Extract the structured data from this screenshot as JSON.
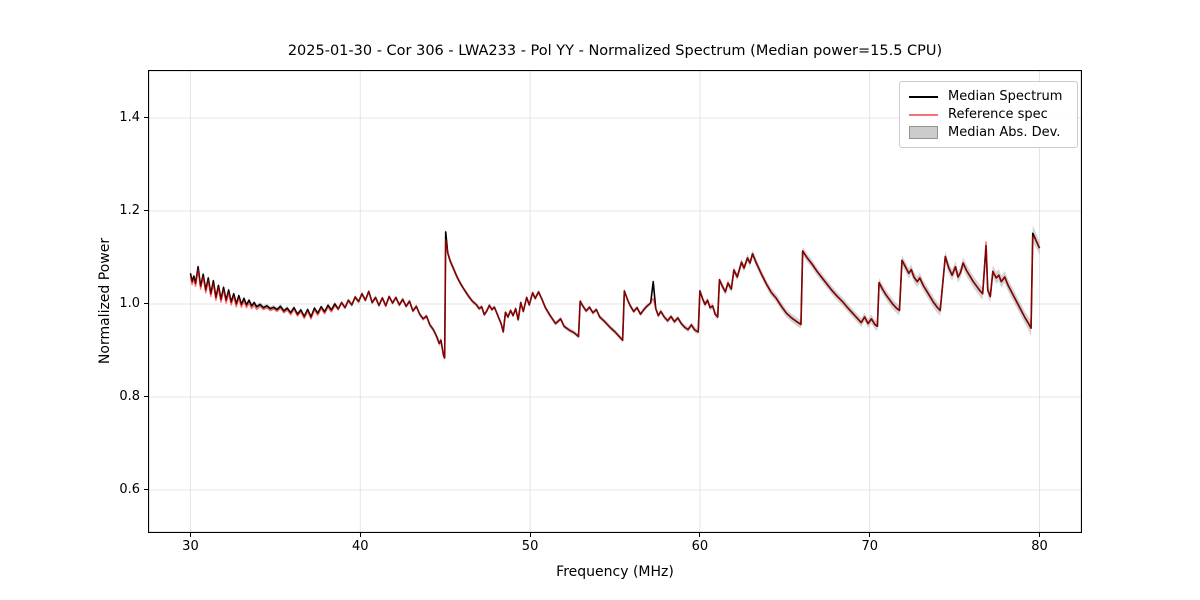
{
  "chart_data": {
    "type": "line",
    "title": "2025-01-30 - Cor 306 - LWA233 - Pol YY - Normalized Spectrum (Median power=15.5 CPU)",
    "xlabel": "Frequency (MHz)",
    "ylabel": "Normalized Power",
    "xlim": [
      27.5,
      82.5
    ],
    "ylim": [
      0.5075,
      1.5032
    ],
    "grid": true,
    "legend_position": "upper right",
    "xticks": [
      {
        "value": 30,
        "label": "30"
      },
      {
        "value": 40,
        "label": "40"
      },
      {
        "value": 50,
        "label": "50"
      },
      {
        "value": 60,
        "label": "60"
      },
      {
        "value": 70,
        "label": "70"
      },
      {
        "value": 80,
        "label": "80"
      }
    ],
    "yticks": [
      {
        "value": 0.6,
        "label": "0.6"
      },
      {
        "value": 0.8,
        "label": "0.8"
      },
      {
        "value": 1.0,
        "label": "1.0"
      },
      {
        "value": 1.2,
        "label": "1.2"
      },
      {
        "value": 1.4,
        "label": "1.4"
      }
    ],
    "legend": {
      "entries": [
        {
          "label": "Median Spectrum",
          "type": "line",
          "swatch_color": "#000000"
        },
        {
          "label": "Reference spec",
          "type": "line",
          "swatch_color": "#f87474"
        },
        {
          "label": "Median Abs. Dev.",
          "type": "patch",
          "swatch_color": "rgba(128,128,128,0.40)",
          "swatch_edge": "rgba(128,128,128,0.75)"
        }
      ]
    },
    "series": [
      {
        "name": "Median Spectrum",
        "color": "#000000",
        "line_width": 1.6,
        "points": [
          [
            30.0,
            1.066
          ],
          [
            30.1,
            1.048
          ],
          [
            30.2,
            1.06
          ],
          [
            30.3,
            1.044
          ],
          [
            30.45,
            1.08
          ],
          [
            30.6,
            1.038
          ],
          [
            30.75,
            1.064
          ],
          [
            30.9,
            1.03
          ],
          [
            31.05,
            1.056
          ],
          [
            31.2,
            1.022
          ],
          [
            31.35,
            1.05
          ],
          [
            31.5,
            1.014
          ],
          [
            31.65,
            1.04
          ],
          [
            31.8,
            1.01
          ],
          [
            31.95,
            1.036
          ],
          [
            32.1,
            1.008
          ],
          [
            32.25,
            1.03
          ],
          [
            32.4,
            1.004
          ],
          [
            32.55,
            1.022
          ],
          [
            32.7,
            1.0
          ],
          [
            32.85,
            1.018
          ],
          [
            33.0,
            0.999
          ],
          [
            33.15,
            1.012
          ],
          [
            33.3,
            0.998
          ],
          [
            33.45,
            1.008
          ],
          [
            33.6,
            0.996
          ],
          [
            33.75,
            1.003
          ],
          [
            33.9,
            0.994
          ],
          [
            34.1,
            0.999
          ],
          [
            34.3,
            0.992
          ],
          [
            34.5,
            0.996
          ],
          [
            34.7,
            0.99
          ],
          [
            34.9,
            0.993
          ],
          [
            35.1,
            0.988
          ],
          [
            35.3,
            0.995
          ],
          [
            35.5,
            0.985
          ],
          [
            35.7,
            0.991
          ],
          [
            35.9,
            0.981
          ],
          [
            36.1,
            0.992
          ],
          [
            36.3,
            0.978
          ],
          [
            36.5,
            0.987
          ],
          [
            36.7,
            0.973
          ],
          [
            36.9,
            0.988
          ],
          [
            37.1,
            0.972
          ],
          [
            37.3,
            0.991
          ],
          [
            37.5,
            0.98
          ],
          [
            37.7,
            0.994
          ],
          [
            37.9,
            0.983
          ],
          [
            38.1,
            0.997
          ],
          [
            38.3,
            0.987
          ],
          [
            38.5,
            1.0
          ],
          [
            38.7,
            0.989
          ],
          [
            38.9,
            1.003
          ],
          [
            39.1,
            0.992
          ],
          [
            39.3,
            1.008
          ],
          [
            39.5,
            0.998
          ],
          [
            39.7,
            1.015
          ],
          [
            39.9,
            1.005
          ],
          [
            40.1,
            1.022
          ],
          [
            40.3,
            1.008
          ],
          [
            40.5,
            1.027
          ],
          [
            40.7,
            1.003
          ],
          [
            40.9,
            1.014
          ],
          [
            41.1,
            0.997
          ],
          [
            41.3,
            1.013
          ],
          [
            41.5,
            0.996
          ],
          [
            41.7,
            1.016
          ],
          [
            41.9,
            1.002
          ],
          [
            42.1,
            1.014
          ],
          [
            42.3,
            0.998
          ],
          [
            42.5,
            1.01
          ],
          [
            42.7,
            0.995
          ],
          [
            42.9,
            1.006
          ],
          [
            43.1,
            0.985
          ],
          [
            43.3,
            0.995
          ],
          [
            43.5,
            0.978
          ],
          [
            43.7,
            0.968
          ],
          [
            43.9,
            0.974
          ],
          [
            44.1,
            0.955
          ],
          [
            44.3,
            0.945
          ],
          [
            44.5,
            0.93
          ],
          [
            44.65,
            0.915
          ],
          [
            44.75,
            0.922
          ],
          [
            44.9,
            0.89
          ],
          [
            44.97,
            0.884
          ],
          [
            45.03,
            1.155
          ],
          [
            45.15,
            1.11
          ],
          [
            45.3,
            1.092
          ],
          [
            45.5,
            1.075
          ],
          [
            45.7,
            1.058
          ],
          [
            45.9,
            1.044
          ],
          [
            46.1,
            1.032
          ],
          [
            46.35,
            1.018
          ],
          [
            46.6,
            1.006
          ],
          [
            46.85,
            0.998
          ],
          [
            47.0,
            0.99
          ],
          [
            47.15,
            0.994
          ],
          [
            47.3,
            0.977
          ],
          [
            47.45,
            0.985
          ],
          [
            47.6,
            0.997
          ],
          [
            47.75,
            0.988
          ],
          [
            47.9,
            0.993
          ],
          [
            48.1,
            0.975
          ],
          [
            48.3,
            0.957
          ],
          [
            48.42,
            0.94
          ],
          [
            48.55,
            0.982
          ],
          [
            48.7,
            0.972
          ],
          [
            48.85,
            0.986
          ],
          [
            49.0,
            0.975
          ],
          [
            49.15,
            0.99
          ],
          [
            49.3,
            0.966
          ],
          [
            49.45,
            1.003
          ],
          [
            49.6,
            0.984
          ],
          [
            49.8,
            1.014
          ],
          [
            49.95,
            0.998
          ],
          [
            50.15,
            1.024
          ],
          [
            50.3,
            1.012
          ],
          [
            50.5,
            1.026
          ],
          [
            50.7,
            1.01
          ],
          [
            50.9,
            0.992
          ],
          [
            51.2,
            0.974
          ],
          [
            51.5,
            0.958
          ],
          [
            51.8,
            0.968
          ],
          [
            52.0,
            0.952
          ],
          [
            52.3,
            0.944
          ],
          [
            52.6,
            0.938
          ],
          [
            52.85,
            0.93
          ],
          [
            52.95,
            1.006
          ],
          [
            53.1,
            0.996
          ],
          [
            53.3,
            0.985
          ],
          [
            53.5,
            0.993
          ],
          [
            53.7,
            0.981
          ],
          [
            53.9,
            0.988
          ],
          [
            54.1,
            0.972
          ],
          [
            54.4,
            0.962
          ],
          [
            54.7,
            0.95
          ],
          [
            55.0,
            0.94
          ],
          [
            55.3,
            0.928
          ],
          [
            55.45,
            0.922
          ],
          [
            55.55,
            1.028
          ],
          [
            55.75,
            1.008
          ],
          [
            55.9,
            0.996
          ],
          [
            56.1,
            0.984
          ],
          [
            56.3,
            0.992
          ],
          [
            56.5,
            0.978
          ],
          [
            56.7,
            0.988
          ],
          [
            56.9,
            0.996
          ],
          [
            57.1,
            1.002
          ],
          [
            57.25,
            1.048
          ],
          [
            57.4,
            0.99
          ],
          [
            57.55,
            0.975
          ],
          [
            57.7,
            0.984
          ],
          [
            57.9,
            0.972
          ],
          [
            58.1,
            0.964
          ],
          [
            58.3,
            0.973
          ],
          [
            58.5,
            0.962
          ],
          [
            58.7,
            0.97
          ],
          [
            58.9,
            0.958
          ],
          [
            59.1,
            0.95
          ],
          [
            59.3,
            0.945
          ],
          [
            59.5,
            0.955
          ],
          [
            59.7,
            0.944
          ],
          [
            59.9,
            0.94
          ],
          [
            60.0,
            1.028
          ],
          [
            60.15,
            1.012
          ],
          [
            60.3,
            0.999
          ],
          [
            60.45,
            1.008
          ],
          [
            60.6,
            0.992
          ],
          [
            60.75,
            0.996
          ],
          [
            60.9,
            0.978
          ],
          [
            61.05,
            0.972
          ],
          [
            61.15,
            1.052
          ],
          [
            61.35,
            1.036
          ],
          [
            61.5,
            1.026
          ],
          [
            61.65,
            1.045
          ],
          [
            61.85,
            1.032
          ],
          [
            62.0,
            1.073
          ],
          [
            62.2,
            1.058
          ],
          [
            62.45,
            1.09
          ],
          [
            62.6,
            1.077
          ],
          [
            62.8,
            1.099
          ],
          [
            62.95,
            1.088
          ],
          [
            63.1,
            1.108
          ],
          [
            63.3,
            1.09
          ],
          [
            63.6,
            1.066
          ],
          [
            63.9,
            1.044
          ],
          [
            64.2,
            1.025
          ],
          [
            64.5,
            1.012
          ],
          [
            64.8,
            0.995
          ],
          [
            65.1,
            0.98
          ],
          [
            65.4,
            0.97
          ],
          [
            65.7,
            0.962
          ],
          [
            65.95,
            0.956
          ],
          [
            66.05,
            1.114
          ],
          [
            66.3,
            1.1
          ],
          [
            66.6,
            1.086
          ],
          [
            66.9,
            1.07
          ],
          [
            67.2,
            1.056
          ],
          [
            67.5,
            1.042
          ],
          [
            67.8,
            1.028
          ],
          [
            68.1,
            1.016
          ],
          [
            68.4,
            1.005
          ],
          [
            68.7,
            0.992
          ],
          [
            69.0,
            0.98
          ],
          [
            69.3,
            0.968
          ],
          [
            69.5,
            0.96
          ],
          [
            69.7,
            0.972
          ],
          [
            69.9,
            0.958
          ],
          [
            70.1,
            0.968
          ],
          [
            70.3,
            0.956
          ],
          [
            70.45,
            0.952
          ],
          [
            70.55,
            1.046
          ],
          [
            70.75,
            1.032
          ],
          [
            70.95,
            1.02
          ],
          [
            71.15,
            1.01
          ],
          [
            71.35,
            1.0
          ],
          [
            71.55,
            0.992
          ],
          [
            71.75,
            0.986
          ],
          [
            71.9,
            1.094
          ],
          [
            72.1,
            1.08
          ],
          [
            72.3,
            1.066
          ],
          [
            72.45,
            1.074
          ],
          [
            72.6,
            1.058
          ],
          [
            72.8,
            1.048
          ],
          [
            72.95,
            1.056
          ],
          [
            73.15,
            1.04
          ],
          [
            73.35,
            1.028
          ],
          [
            73.55,
            1.016
          ],
          [
            73.75,
            1.004
          ],
          [
            73.95,
            0.994
          ],
          [
            74.15,
            0.986
          ],
          [
            74.45,
            1.102
          ],
          [
            74.65,
            1.078
          ],
          [
            74.85,
            1.062
          ],
          [
            75.05,
            1.08
          ],
          [
            75.2,
            1.058
          ],
          [
            75.35,
            1.068
          ],
          [
            75.5,
            1.088
          ],
          [
            75.7,
            1.072
          ],
          [
            75.9,
            1.06
          ],
          [
            76.1,
            1.048
          ],
          [
            76.3,
            1.038
          ],
          [
            76.5,
            1.028
          ],
          [
            76.65,
            1.022
          ],
          [
            76.85,
            1.125
          ],
          [
            76.95,
            1.03
          ],
          [
            77.1,
            1.016
          ],
          [
            77.25,
            1.07
          ],
          [
            77.45,
            1.056
          ],
          [
            77.6,
            1.062
          ],
          [
            77.75,
            1.048
          ],
          [
            77.95,
            1.058
          ],
          [
            78.15,
            1.04
          ],
          [
            78.35,
            1.026
          ],
          [
            78.55,
            1.012
          ],
          [
            78.75,
            0.998
          ],
          [
            78.95,
            0.984
          ],
          [
            79.15,
            0.97
          ],
          [
            79.35,
            0.958
          ],
          [
            79.5,
            0.948
          ],
          [
            79.6,
            1.152
          ],
          [
            79.75,
            1.14
          ],
          [
            79.9,
            1.128
          ],
          [
            80.0,
            1.12
          ]
        ]
      },
      {
        "name": "Reference spec",
        "color": "rgba(255,0,0,0.55)",
        "line_width": 1.5,
        "derived_from_median": true,
        "offset_regions": [
          {
            "x_max": 34.0,
            "delta": -0.006
          },
          {
            "x_max": 38.5,
            "delta": -0.004
          }
        ],
        "override_points": [
          [
            45.03,
            1.138
          ],
          [
            57.25,
            1.012
          ],
          [
            76.85,
            1.133
          ],
          [
            79.6,
            1.146
          ]
        ]
      },
      {
        "name": "Median Abs. Dev.",
        "type": "band",
        "color": "rgba(128,128,128,0.35)",
        "mad_profile": [
          [
            30,
            0.005
          ],
          [
            44,
            0.005
          ],
          [
            45,
            0.008
          ],
          [
            46,
            0.005
          ],
          [
            57,
            0.005
          ],
          [
            60,
            0.006
          ],
          [
            62,
            0.008
          ],
          [
            66,
            0.009
          ],
          [
            69,
            0.009
          ],
          [
            72,
            0.011
          ],
          [
            75,
            0.012
          ],
          [
            77,
            0.013
          ],
          [
            79.3,
            0.013
          ],
          [
            79.55,
            0.018
          ],
          [
            80,
            0.014
          ]
        ]
      }
    ]
  },
  "style": {
    "background": "#ffffff",
    "grid_color": "#e4e4e4",
    "spine_color": "#000000",
    "tick_color": "#000000",
    "legend_border_color": "#cccccc"
  }
}
